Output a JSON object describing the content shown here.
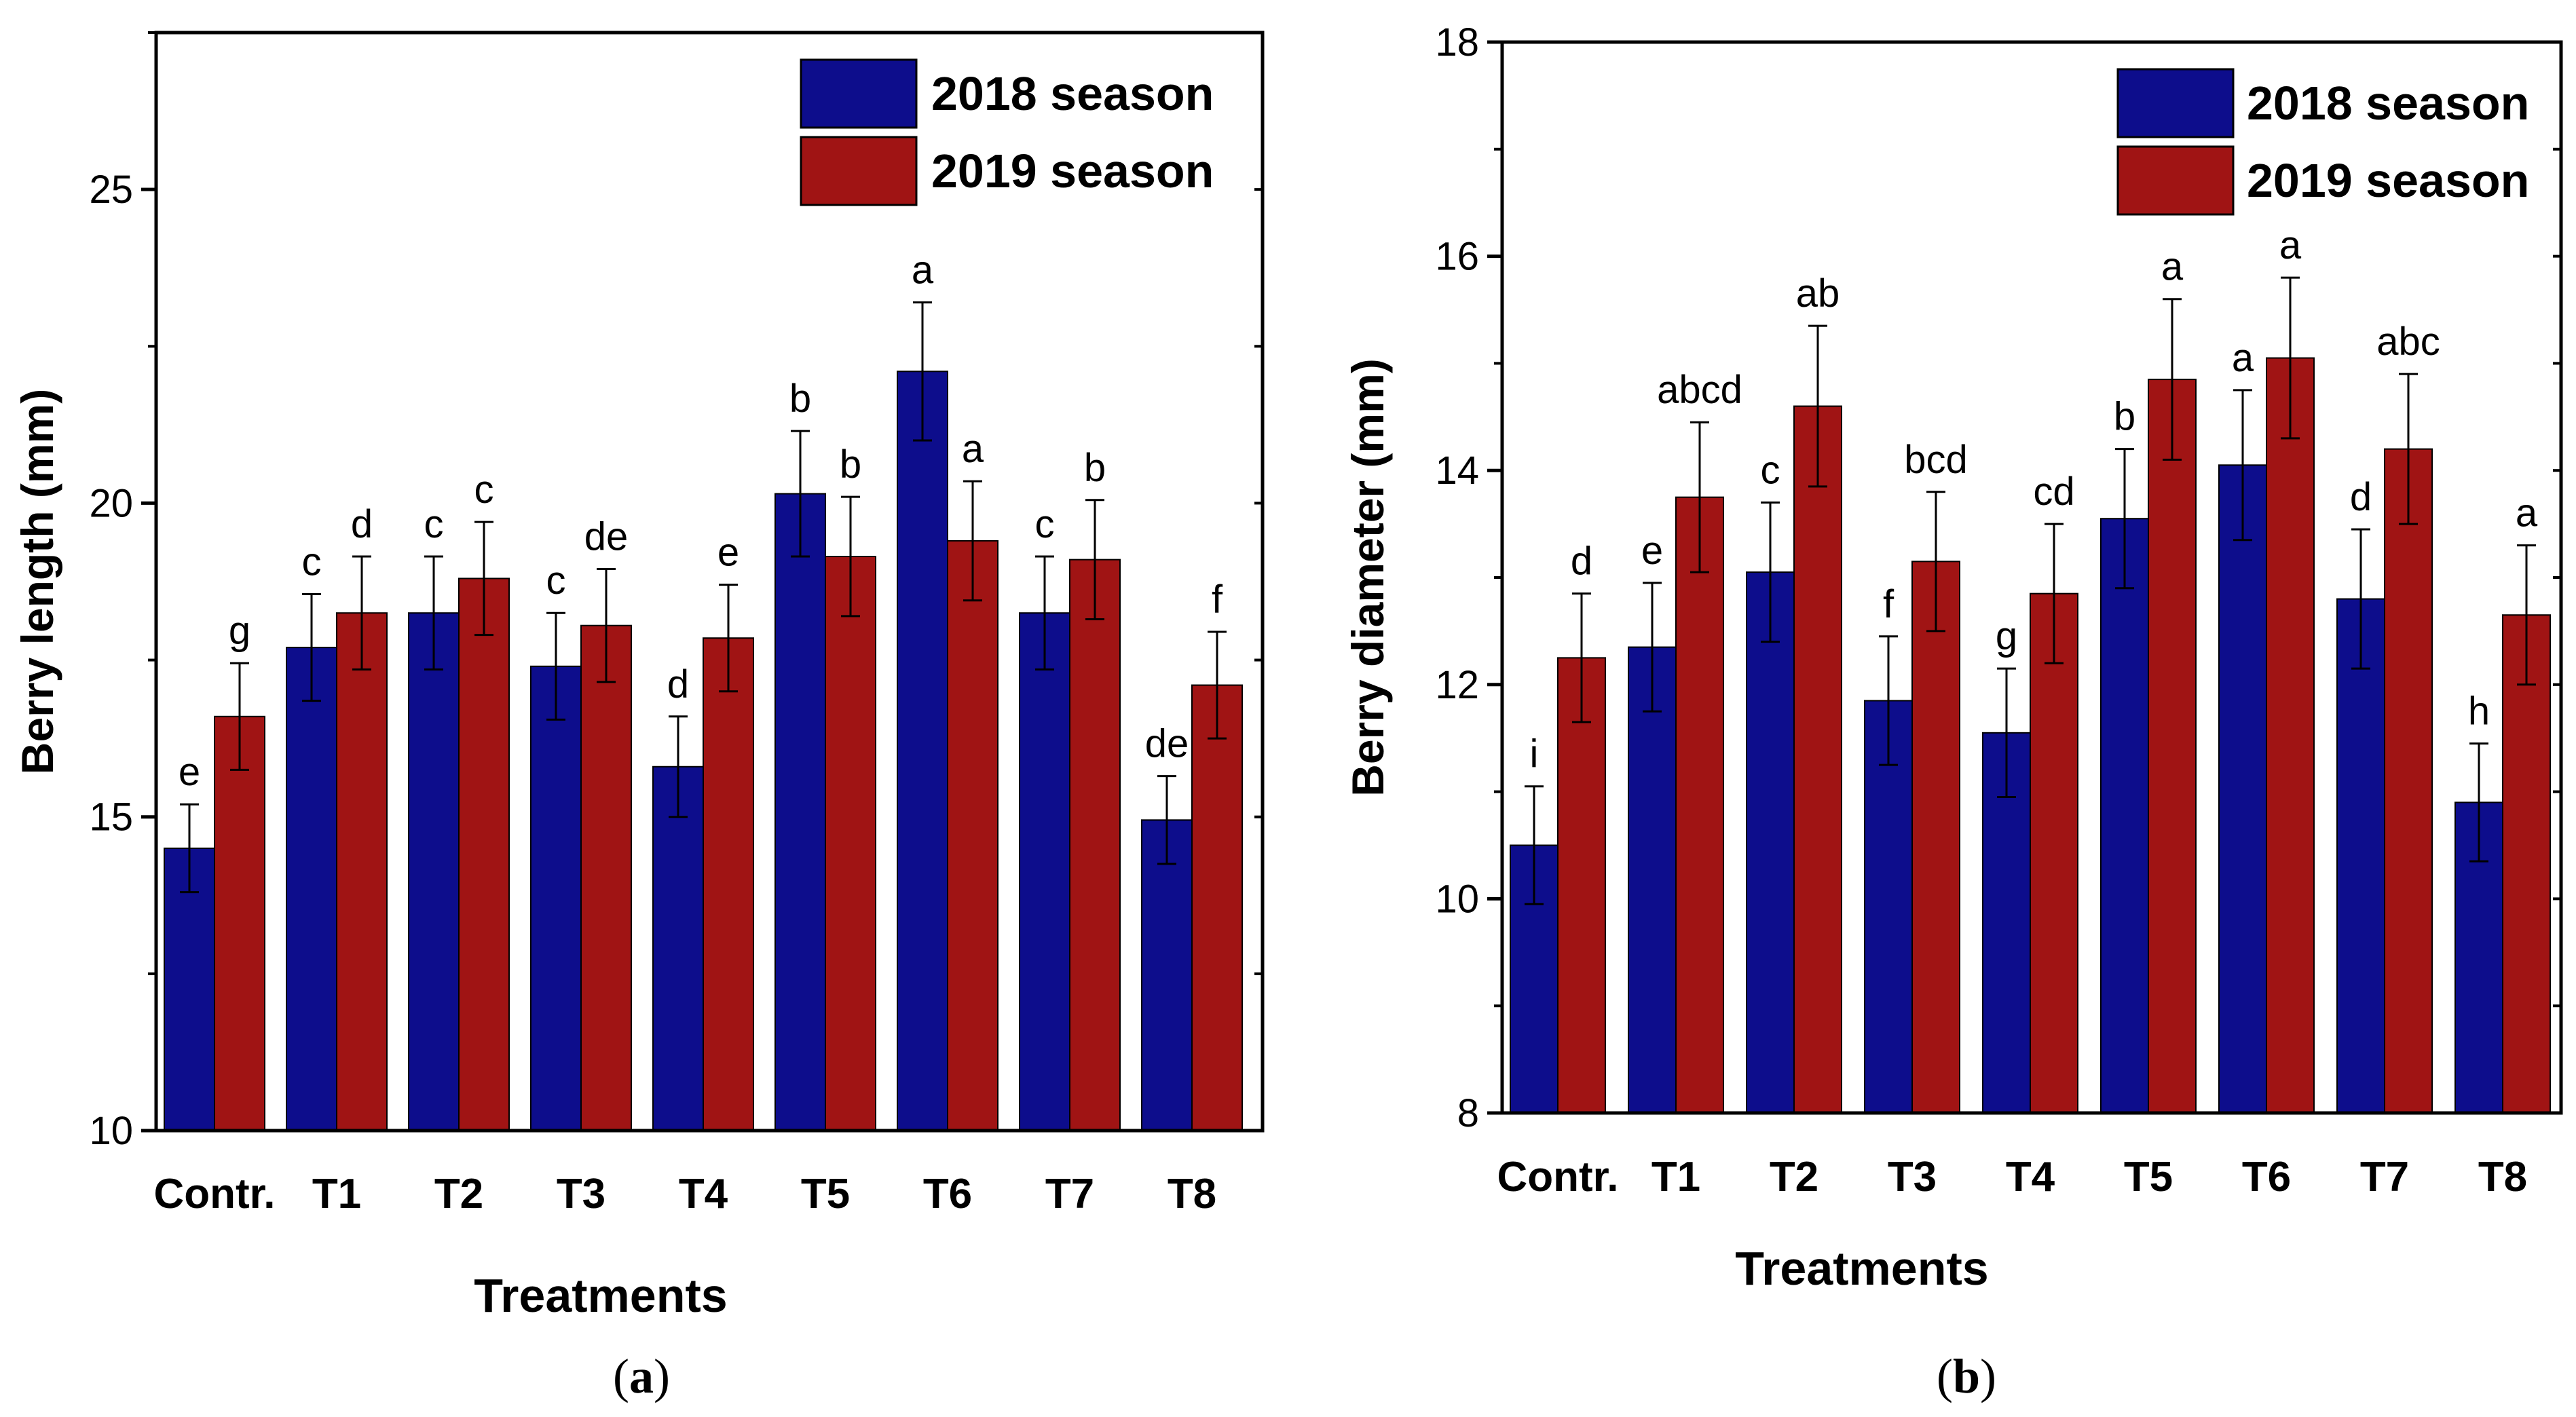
{
  "colors": {
    "series_2018": "#0d0d8c",
    "series_2019": "#a01414",
    "axis": "#000000",
    "background": "#ffffff"
  },
  "panel_labels": {
    "a": {
      "open": "(",
      "letter": "a",
      "close": ")"
    },
    "b": {
      "open": "(",
      "letter": "b",
      "close": ")"
    }
  },
  "chart_data": [
    {
      "id": "a",
      "type": "bar",
      "title": "",
      "xlabel": "Treatments",
      "ylabel": "Berry length (mm)",
      "ylim": [
        10,
        27.5
      ],
      "yticks": [
        10,
        15,
        20,
        25
      ],
      "categories": [
        "Contr.",
        "T1",
        "T2",
        "T3",
        "T4",
        "T5",
        "T6",
        "T7",
        "T8"
      ],
      "legend": {
        "position": "top-right",
        "entries": [
          "2018 season",
          "2019 season"
        ]
      },
      "series": [
        {
          "name": "2018 season",
          "values": [
            14.5,
            17.7,
            18.25,
            17.4,
            15.8,
            20.15,
            22.1,
            18.25,
            14.95
          ],
          "errors": [
            0.7,
            0.85,
            0.9,
            0.85,
            0.8,
            1.0,
            1.1,
            0.9,
            0.7
          ],
          "letters": [
            "e",
            "c",
            "c",
            "c",
            "d",
            "b",
            "a",
            "c",
            "de"
          ]
        },
        {
          "name": "2019 season",
          "values": [
            16.6,
            18.25,
            18.8,
            18.05,
            17.85,
            19.15,
            19.4,
            19.1,
            17.1
          ],
          "errors": [
            0.85,
            0.9,
            0.9,
            0.9,
            0.85,
            0.95,
            0.95,
            0.95,
            0.85
          ],
          "letters": [
            "g",
            "d",
            "c",
            "de",
            "e",
            "b",
            "a",
            "b",
            "f"
          ]
        }
      ]
    },
    {
      "id": "b",
      "type": "bar",
      "title": "",
      "xlabel": "Treatments",
      "ylabel": "Berry diameter (mm)",
      "ylim": [
        8,
        18
      ],
      "yticks": [
        8,
        10,
        12,
        14,
        16,
        18
      ],
      "categories": [
        "Contr.",
        "T1",
        "T2",
        "T3",
        "T4",
        "T5",
        "T6",
        "T7",
        "T8"
      ],
      "legend": {
        "position": "top-right",
        "entries": [
          "2018 season",
          "2019 season"
        ]
      },
      "series": [
        {
          "name": "2018 season",
          "values": [
            10.5,
            12.35,
            13.05,
            11.85,
            11.55,
            13.55,
            14.05,
            12.8,
            10.9
          ],
          "errors": [
            0.55,
            0.6,
            0.65,
            0.6,
            0.6,
            0.65,
            0.7,
            0.65,
            0.55
          ],
          "letters": [
            "i",
            "e",
            "c",
            "f",
            "g",
            "b",
            "a",
            "d",
            "h"
          ]
        },
        {
          "name": "2019 season",
          "values": [
            12.25,
            13.75,
            14.6,
            13.15,
            12.85,
            14.85,
            15.05,
            14.2,
            12.65
          ],
          "errors": [
            0.6,
            0.7,
            0.75,
            0.65,
            0.65,
            0.75,
            0.75,
            0.7,
            0.65
          ],
          "letters": [
            "d",
            "abcd",
            "ab",
            "bcd",
            "cd",
            "a",
            "a",
            "abc",
            "a"
          ]
        }
      ]
    }
  ]
}
